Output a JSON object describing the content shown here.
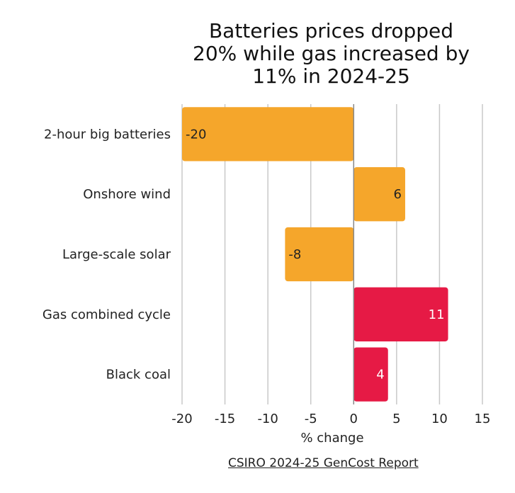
{
  "chart_data": {
    "type": "bar",
    "orientation": "horizontal",
    "title_lines": [
      "Batteries prices dropped",
      "20% while gas increased by",
      "11% in 2024-25"
    ],
    "categories": [
      "2-hour big batteries",
      "Onshore wind",
      "Large-scale solar",
      "Gas combined cycle",
      "Black coal"
    ],
    "values": [
      -20,
      6,
      -8,
      11,
      4
    ],
    "bar_colors": [
      "#F5A62B",
      "#F5A62B",
      "#F5A62B",
      "#E61A45",
      "#E61A45"
    ],
    "label_colors": [
      "#222222",
      "#222222",
      "#222222",
      "#ffffff",
      "#ffffff"
    ],
    "value_labels": [
      "-20",
      "6",
      "-8",
      "11",
      "4"
    ],
    "xlabel": "% change",
    "xlim": [
      -20,
      15
    ],
    "xticks": [
      -20,
      -15,
      -10,
      -5,
      0,
      5,
      10,
      15
    ],
    "xtick_labels": [
      "-20",
      "-15",
      "-10",
      "-5",
      "0",
      "5",
      "10",
      "15"
    ],
    "grid": true,
    "grid_color": "#c8c8c8",
    "source": "CSIRO 2024-25 GenCost Report"
  }
}
